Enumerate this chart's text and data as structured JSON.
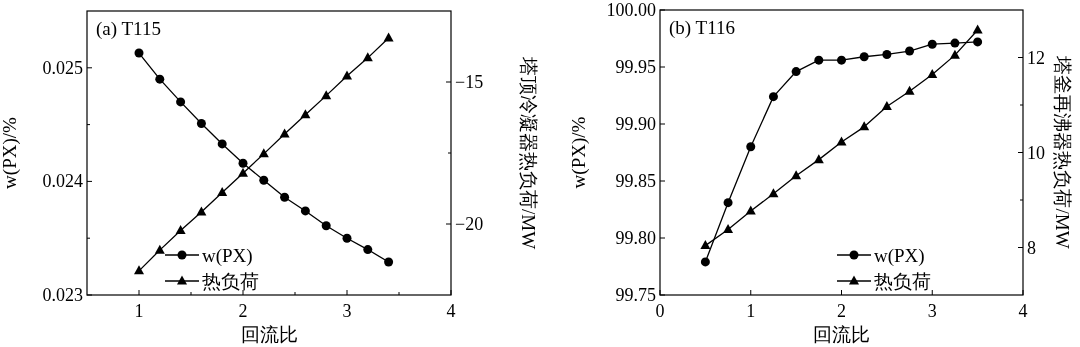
{
  "chart_data": [
    {
      "type": "line",
      "title": "(a) T115",
      "xlabel": "回流比",
      "ylabel": "w(PX)/%",
      "y2label": "塔顶冷凝器热负荷/MW",
      "legend": "bottom left",
      "x": [
        1,
        1.2,
        1.4,
        1.6,
        1.8,
        2,
        2.2,
        2.4,
        2.6,
        2.8,
        3,
        3.2,
        3.4
      ],
      "xlim": [
        0.5,
        4
      ],
      "xticks": [
        1,
        {
          "value": 1.5,
          "label": null
        },
        2,
        {
          "value": 2.5,
          "label": null
        },
        3,
        {
          "value": 3.5,
          "label": null
        },
        4
      ],
      "ylim": [
        0.023,
        0.0255
      ],
      "yticks": [
        0.023,
        {
          "value": 0.0235,
          "label": null
        },
        0.024,
        {
          "value": 0.0245,
          "label": null
        },
        0.025
      ],
      "y2lim": [
        -22.5,
        -12.5
      ],
      "y2ticks": [
        {
          "value": -20,
          "label": "−20"
        },
        {
          "value": -17.5,
          "label": null
        },
        {
          "value": -15,
          "label": "−15"
        }
      ],
      "series": [
        {
          "name": "w(PX)",
          "color": "#000000",
          "marker": "circle",
          "values": [
            0.02513,
            0.0249,
            0.0247,
            0.02451,
            0.02433,
            0.02416,
            0.02401,
            0.02386,
            0.02374,
            0.02361,
            0.0235,
            0.0234,
            0.02329
          ]
        },
        {
          "name": "热负荷",
          "color": "#000000",
          "marker": "triangle",
          "axis": "y2",
          "values": [
            -21.65,
            -20.92,
            -20.23,
            -19.58,
            -18.89,
            -18.21,
            -17.53,
            -16.83,
            -16.15,
            -15.48,
            -14.79,
            -14.15,
            -13.45
          ]
        }
      ]
    },
    {
      "type": "line",
      "title": "(b) T116",
      "xlabel": "回流比",
      "ylabel": "w(PX)/%",
      "y2label": "塔釜再沸器热负荷/MW",
      "legend": "bottom right",
      "x": [
        0.5,
        0.75,
        1,
        1.25,
        1.5,
        1.75,
        2,
        2.25,
        2.5,
        2.75,
        3,
        3.25,
        3.5
      ],
      "xlim": [
        0,
        4
      ],
      "xticks": [
        0,
        1,
        2,
        3,
        4
      ],
      "ylim": [
        99.75,
        100
      ],
      "yticks": [
        {
          "value": 99.75,
          "label": "99.75"
        },
        {
          "value": 99.8,
          "label": "99.80"
        },
        {
          "value": 99.85,
          "label": "99.85"
        },
        {
          "value": 99.9,
          "label": "99.90"
        },
        {
          "value": 99.95,
          "label": "99.95"
        },
        {
          "value": 100,
          "label": "100.00"
        }
      ],
      "y2lim": [
        7,
        13
      ],
      "y2ticks": [
        8,
        {
          "value": 9,
          "label": null
        },
        10,
        {
          "value": 11,
          "label": null
        },
        12
      ],
      "series": [
        {
          "name": "w(PX)",
          "color": "#000000",
          "marker": "circle",
          "values": [
            99.779,
            99.831,
            99.88,
            99.924,
            99.946,
            99.956,
            99.956,
            99.959,
            99.961,
            99.964,
            99.97,
            99.971,
            99.972
          ]
        },
        {
          "name": "热负荷",
          "color": "#000000",
          "marker": "triangle",
          "axis": "y2",
          "values": [
            8.04,
            8.38,
            8.77,
            9.13,
            9.51,
            9.85,
            10.22,
            10.54,
            10.97,
            11.29,
            11.64,
            12.05,
            12.58
          ]
        }
      ]
    }
  ]
}
